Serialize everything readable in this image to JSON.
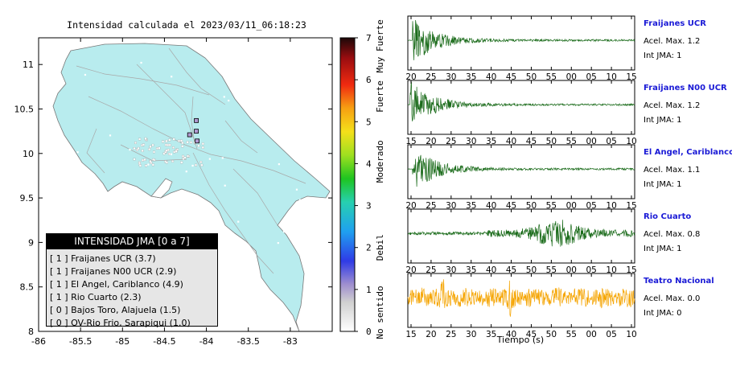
{
  "map": {
    "title": "Intensidad calculada el 2023/03/11_06:18:23",
    "x_ticks": [
      "-86",
      "-85.5",
      "-85",
      "-84.5",
      "-84",
      "-83.5",
      "-83"
    ],
    "y_ticks": [
      "11",
      "10.5",
      "10",
      "9.5",
      "9",
      "8.5",
      "8"
    ],
    "xlim": [
      -86,
      -82.5
    ],
    "ylim": [
      8,
      11.3
    ],
    "land_color": "#b8ecee",
    "station_marker_color": "#b19ad1"
  },
  "colorbar": {
    "ticks": [
      "0",
      "1",
      "2",
      "3",
      "4",
      "5",
      "6",
      "7"
    ],
    "labels": [
      "No sentido",
      "Debil",
      "Moderado",
      "Fuerte",
      "Muy Fuerte"
    ],
    "range": [
      0,
      7
    ]
  },
  "legend": {
    "header": "INTENSIDAD JMA [0 a 7]",
    "items": [
      {
        "jma": "[ 1 ]",
        "station": "Fraijanes UCR (3.7)"
      },
      {
        "jma": "[ 1 ]",
        "station": "Fraijanes N00 UCR (2.9)"
      },
      {
        "jma": "[ 1 ]",
        "station": "El Angel, Cariblanco (4.9)"
      },
      {
        "jma": "[ 1 ]",
        "station": "Rio Cuarto (2.3)"
      },
      {
        "jma": "[ 0 ]",
        "station": "Bajos Toro, Alajuela (1.5)"
      },
      {
        "jma": "[ 0 ]",
        "station": "OV-Rio Frio, Sarapiqui (1.0)"
      }
    ]
  },
  "chart_data": [
    {
      "type": "scatter",
      "name": "map",
      "title": "Intensidad calculada el 2023/03/11_06:18:23",
      "xlim": [
        -86,
        -82.5
      ],
      "ylim": [
        8,
        11.3
      ],
      "points": [
        {
          "lon": -84.12,
          "lat": 10.37
        },
        {
          "lon": -84.2,
          "lat": 10.21
        },
        {
          "lon": -84.12,
          "lat": 10.25
        },
        {
          "lon": -84.11,
          "lat": 10.14
        }
      ]
    }
  ],
  "seismograms": {
    "xlabel": "Tiempo (s)",
    "traces": [
      {
        "name": "Fraijanes UCR",
        "accel": "Acel. Max. 1.2",
        "jma": "Int JMA: 1",
        "color": "#1a6b1a",
        "onset": 0.02,
        "pattern": "decay",
        "ticks": [
          "20",
          "25",
          "30",
          "35",
          "40",
          "45",
          "50",
          "55",
          "00",
          "05",
          "10",
          "15"
        ]
      },
      {
        "name": "Fraijanes N00 UCR",
        "accel": "Acel. Max. 1.2",
        "jma": "Int JMA: 1",
        "color": "#1a6b1a",
        "onset": 0.01,
        "pattern": "decay",
        "ticks": [
          "15",
          "20",
          "25",
          "30",
          "35",
          "40",
          "45",
          "50",
          "55",
          "00",
          "05",
          "10"
        ]
      },
      {
        "name": "El Angel, Cariblanco",
        "accel": "Acel. Max. 1.1",
        "jma": "Int JMA: 1",
        "color": "#1a6b1a",
        "onset": 0.02,
        "pattern": "decay",
        "ticks": [
          "20",
          "25",
          "30",
          "35",
          "40",
          "45",
          "50",
          "55",
          "00",
          "05",
          "10",
          "15"
        ]
      },
      {
        "name": "Rio Cuarto",
        "accel": "Acel. Max. 0.8",
        "jma": "Int JMA: 1",
        "color": "#1a6b1a",
        "onset": 0.4,
        "pattern": "burst",
        "ticks": [
          "20",
          "25",
          "30",
          "35",
          "40",
          "45",
          "50",
          "55",
          "00",
          "05",
          "10",
          "15"
        ]
      },
      {
        "name": "Teatro Nacional",
        "accel": "Acel. Max. 0.0",
        "jma": "Int JMA: 0",
        "color": "#f5a400",
        "onset": 0.0,
        "pattern": "noise",
        "ticks": [
          "15",
          "20",
          "25",
          "30",
          "35",
          "40",
          "45",
          "50",
          "55",
          "00",
          "05",
          "10"
        ]
      }
    ]
  }
}
